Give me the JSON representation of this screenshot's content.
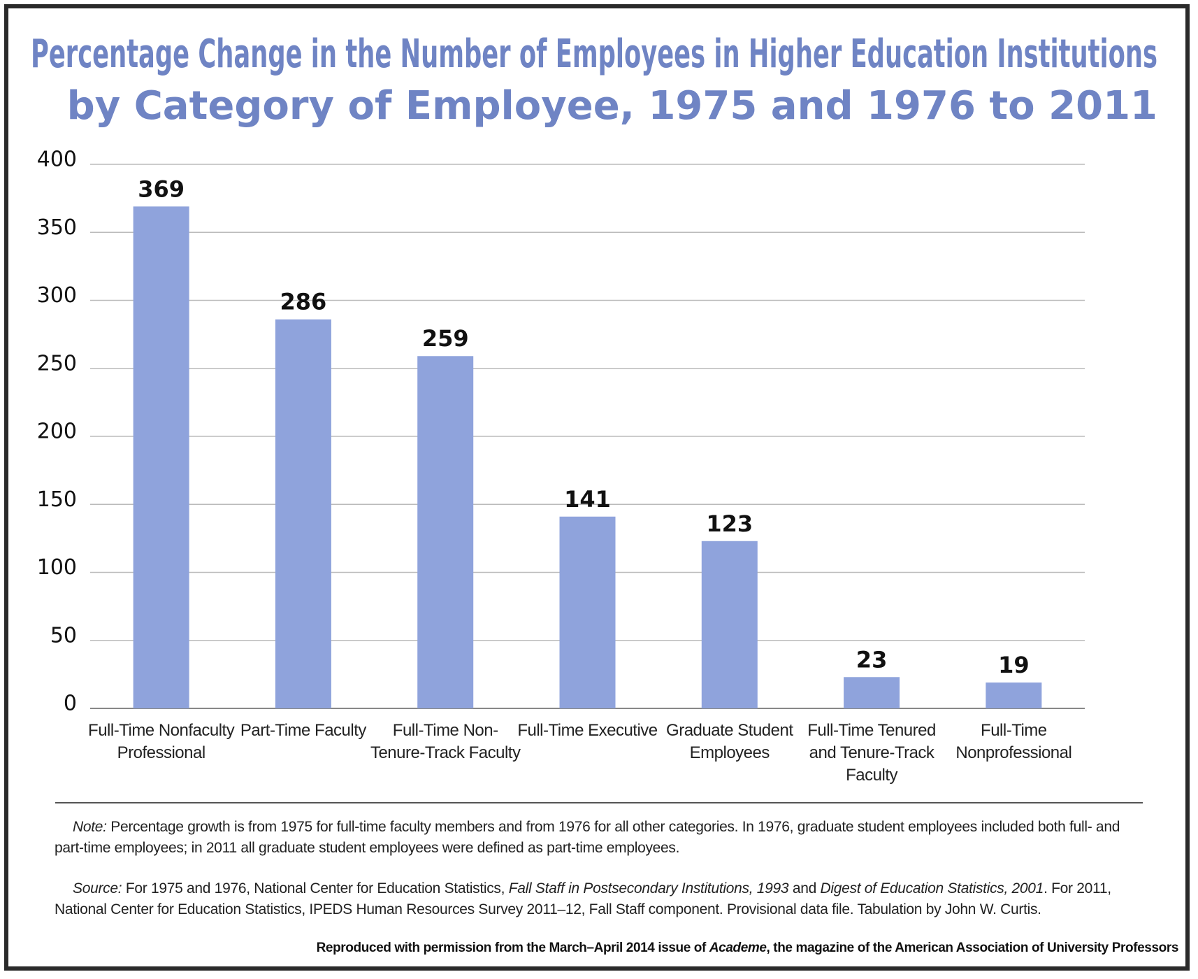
{
  "chart_data": {
    "type": "bar",
    "title": [
      "Percentage Change in the Number of Employees in Higher Education Institutions",
      "by Category of Employee, 1975 and 1976 to 2011"
    ],
    "categories": [
      "Full-Time Nonfaculty Professional",
      "Part-Time Faculty",
      "Full-Time Non-Tenure-Track Faculty",
      "Full-Time Executive",
      "Graduate Student Employees",
      "Full-Time Tenured and Tenure-Track Faculty",
      "Full-Time Nonprofessional"
    ],
    "values": [
      369,
      286,
      259,
      141,
      123,
      23,
      19
    ],
    "color": "#8fa3dc",
    "ylim": [
      0,
      400
    ],
    "yticks": [
      0,
      50,
      100,
      150,
      200,
      250,
      300,
      350,
      400
    ],
    "grid": true
  },
  "note": {
    "label": "Note:",
    "text": "Percentage growth is from 1975 for full-time faculty members and from 1976 for all other categories. In 1976, graduate student employees included both full- and part-time employees; in 2011 all graduate student employees were defined as part-time employees."
  },
  "source": {
    "label": "Source:",
    "text": [
      "For 1975 and 1976, National Center for Education Statistics, ",
      "Fall Staff in Postsecondary Institutions, 1993",
      " and ",
      "Digest of Education Statistics, 2001",
      ". For 2011, National Center for Education Statistics, IPEDS Human Resources Survey 2011–12, Fall Staff component. Provisional data file. Tabulation by John W. Curtis."
    ]
  },
  "credit": [
    "Reproduced with permission from the March–April 2014 issue of ",
    "Academe",
    ", the magazine of the American Association of University Professors"
  ]
}
